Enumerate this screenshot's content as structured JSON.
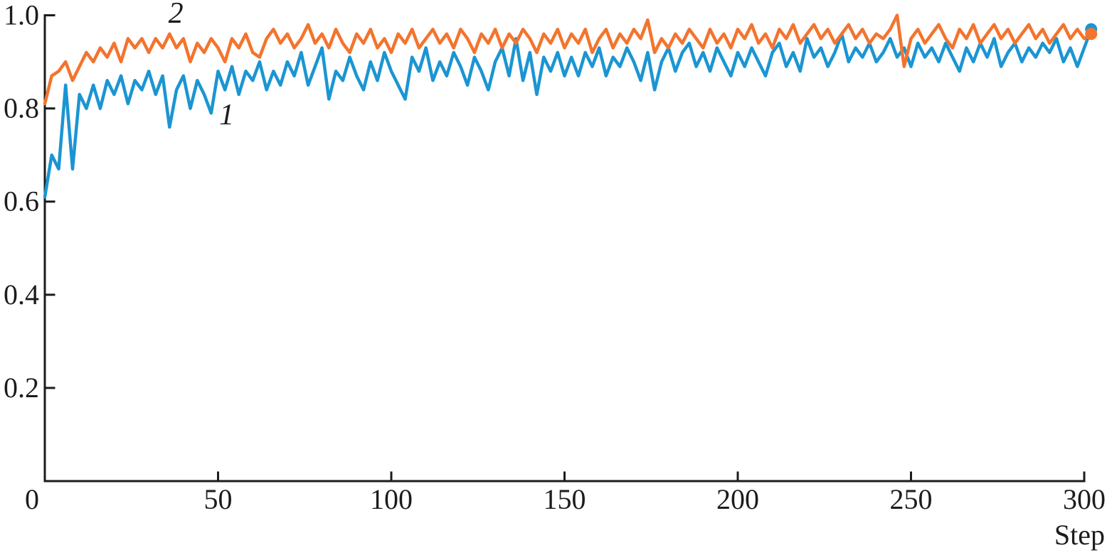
{
  "figure": {
    "background": "#ffffff",
    "axis_color": "#1c1c1c",
    "xlabel": "Step"
  },
  "chart_data": {
    "type": "line",
    "title": "",
    "xlabel": "Step",
    "ylabel": "",
    "xlim": [
      0,
      302
    ],
    "ylim": [
      0,
      1.0
    ],
    "x_ticks": [
      0,
      50,
      100,
      150,
      200,
      250,
      300
    ],
    "y_ticks": [
      0.2,
      0.4,
      0.6,
      0.8,
      1.0
    ],
    "grid": false,
    "legend_position": "inline-curve-labels",
    "x": [
      0,
      2,
      4,
      6,
      8,
      10,
      12,
      14,
      16,
      18,
      20,
      22,
      24,
      26,
      28,
      30,
      32,
      34,
      36,
      38,
      40,
      42,
      44,
      46,
      48,
      50,
      52,
      54,
      56,
      58,
      60,
      62,
      64,
      66,
      68,
      70,
      72,
      74,
      76,
      78,
      80,
      82,
      84,
      86,
      88,
      90,
      92,
      94,
      96,
      98,
      100,
      102,
      104,
      106,
      108,
      110,
      112,
      114,
      116,
      118,
      120,
      122,
      124,
      126,
      128,
      130,
      132,
      134,
      136,
      138,
      140,
      142,
      144,
      146,
      148,
      150,
      152,
      154,
      156,
      158,
      160,
      162,
      164,
      166,
      168,
      170,
      172,
      174,
      176,
      178,
      180,
      182,
      184,
      186,
      188,
      190,
      192,
      194,
      196,
      198,
      200,
      202,
      204,
      206,
      208,
      210,
      212,
      214,
      216,
      218,
      220,
      222,
      224,
      226,
      228,
      230,
      232,
      234,
      236,
      238,
      240,
      242,
      244,
      246,
      248,
      250,
      252,
      254,
      256,
      258,
      260,
      262,
      264,
      266,
      268,
      270,
      272,
      274,
      276,
      278,
      280,
      282,
      284,
      286,
      288,
      290,
      292,
      294,
      296,
      298,
      300,
      302
    ],
    "series": [
      {
        "name": "series-1",
        "label": "1",
        "color": "#1b95d2",
        "end_marker": true,
        "label_pos": {
          "step": 52.5,
          "value": 0.787
        },
        "values": [
          0.61,
          0.7,
          0.67,
          0.85,
          0.67,
          0.83,
          0.8,
          0.85,
          0.8,
          0.86,
          0.83,
          0.87,
          0.81,
          0.86,
          0.84,
          0.88,
          0.83,
          0.87,
          0.76,
          0.84,
          0.87,
          0.8,
          0.86,
          0.83,
          0.79,
          0.88,
          0.84,
          0.89,
          0.83,
          0.88,
          0.86,
          0.9,
          0.84,
          0.88,
          0.85,
          0.9,
          0.87,
          0.92,
          0.85,
          0.89,
          0.93,
          0.82,
          0.88,
          0.86,
          0.91,
          0.87,
          0.84,
          0.9,
          0.86,
          0.92,
          0.88,
          0.85,
          0.82,
          0.91,
          0.88,
          0.93,
          0.86,
          0.9,
          0.87,
          0.92,
          0.89,
          0.85,
          0.91,
          0.88,
          0.84,
          0.9,
          0.93,
          0.87,
          0.95,
          0.86,
          0.92,
          0.83,
          0.91,
          0.88,
          0.92,
          0.87,
          0.91,
          0.87,
          0.92,
          0.89,
          0.93,
          0.87,
          0.91,
          0.89,
          0.93,
          0.9,
          0.86,
          0.92,
          0.84,
          0.9,
          0.93,
          0.88,
          0.92,
          0.94,
          0.89,
          0.92,
          0.88,
          0.93,
          0.9,
          0.87,
          0.92,
          0.89,
          0.93,
          0.9,
          0.87,
          0.92,
          0.94,
          0.89,
          0.92,
          0.88,
          0.95,
          0.91,
          0.93,
          0.89,
          0.92,
          0.96,
          0.9,
          0.93,
          0.91,
          0.94,
          0.9,
          0.92,
          0.95,
          0.91,
          0.93,
          0.89,
          0.94,
          0.91,
          0.93,
          0.9,
          0.94,
          0.91,
          0.88,
          0.93,
          0.9,
          0.94,
          0.91,
          0.95,
          0.89,
          0.92,
          0.94,
          0.9,
          0.93,
          0.91,
          0.94,
          0.92,
          0.95,
          0.9,
          0.93,
          0.89,
          0.93,
          0.97
        ]
      },
      {
        "name": "series-2",
        "label": "2",
        "color": "#f3742e",
        "end_marker": true,
        "label_pos": {
          "step": 37.8,
          "value": 1.005
        },
        "values": [
          0.81,
          0.87,
          0.88,
          0.9,
          0.86,
          0.89,
          0.92,
          0.9,
          0.93,
          0.91,
          0.94,
          0.9,
          0.95,
          0.93,
          0.95,
          0.92,
          0.95,
          0.93,
          0.96,
          0.93,
          0.95,
          0.9,
          0.94,
          0.92,
          0.95,
          0.93,
          0.9,
          0.95,
          0.93,
          0.96,
          0.92,
          0.91,
          0.95,
          0.97,
          0.94,
          0.96,
          0.93,
          0.95,
          0.98,
          0.94,
          0.96,
          0.93,
          0.97,
          0.94,
          0.92,
          0.96,
          0.94,
          0.97,
          0.93,
          0.95,
          0.92,
          0.96,
          0.94,
          0.97,
          0.93,
          0.95,
          0.97,
          0.94,
          0.96,
          0.93,
          0.97,
          0.95,
          0.92,
          0.96,
          0.94,
          0.97,
          0.93,
          0.96,
          0.94,
          0.97,
          0.95,
          0.92,
          0.96,
          0.94,
          0.97,
          0.93,
          0.96,
          0.94,
          0.97,
          0.92,
          0.95,
          0.97,
          0.93,
          0.96,
          0.94,
          0.97,
          0.95,
          0.99,
          0.92,
          0.95,
          0.93,
          0.96,
          0.94,
          0.97,
          0.95,
          0.93,
          0.97,
          0.94,
          0.96,
          0.93,
          0.97,
          0.95,
          0.98,
          0.94,
          0.96,
          0.93,
          0.97,
          0.95,
          0.98,
          0.94,
          0.96,
          0.98,
          0.95,
          0.97,
          0.94,
          0.96,
          0.98,
          0.95,
          0.97,
          0.94,
          0.96,
          0.95,
          0.97,
          1.0,
          0.89,
          0.95,
          0.97,
          0.94,
          0.96,
          0.98,
          0.95,
          0.93,
          0.97,
          0.95,
          0.98,
          0.94,
          0.96,
          0.98,
          0.95,
          0.97,
          0.94,
          0.96,
          0.98,
          0.95,
          0.97,
          0.94,
          0.96,
          0.98,
          0.95,
          0.97,
          0.95,
          0.96
        ]
      }
    ]
  }
}
